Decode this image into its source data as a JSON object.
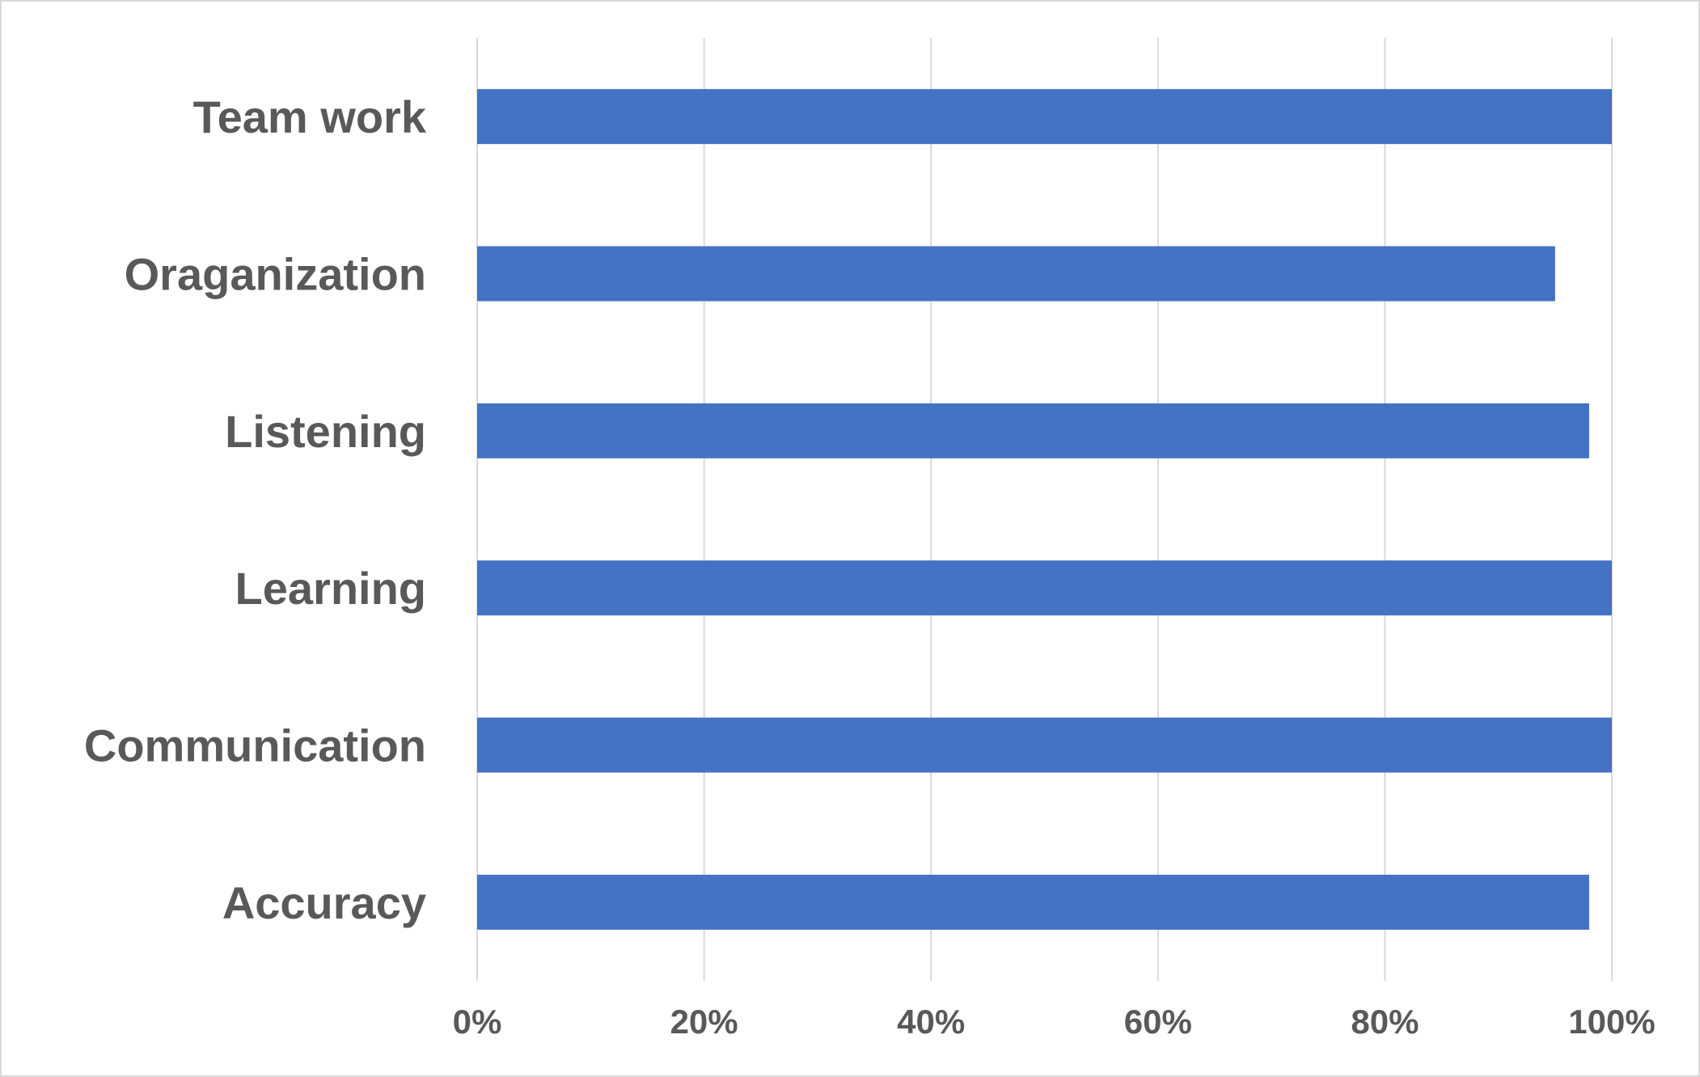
{
  "chart_data": {
    "type": "bar",
    "orientation": "horizontal",
    "categories": [
      "Team work",
      "Oraganization",
      "Listening",
      "Learning",
      "Communication",
      "Accuracy"
    ],
    "values": [
      100,
      95,
      98,
      100,
      100,
      98
    ],
    "xlim": [
      0,
      100
    ],
    "x_ticks": [
      "0%",
      "20%",
      "40%",
      "60%",
      "80%",
      "100%"
    ],
    "title": "",
    "xlabel": "",
    "ylabel": "",
    "grid": true,
    "legend": "none",
    "colors": {
      "bar": "#4472c4",
      "grid": "#d9d9d9",
      "text": "#595959",
      "border": "#d9d9d9"
    }
  }
}
